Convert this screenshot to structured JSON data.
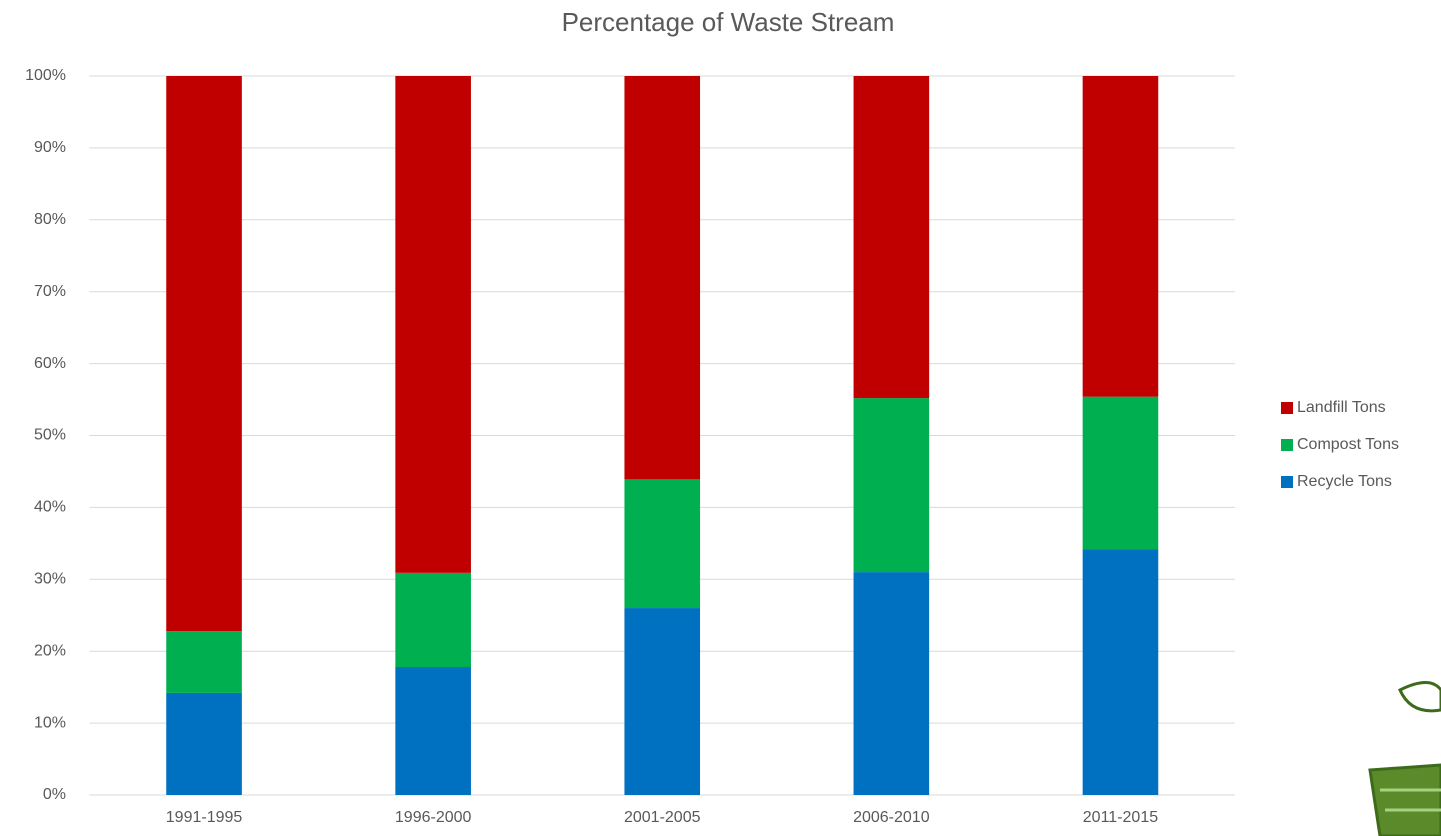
{
  "chart_data": {
    "type": "stacked_bar",
    "title": "Percentage of Waste Stream",
    "categories": [
      "1991-1995",
      "1996-2000",
      "2001-2005",
      "2006-2010",
      "2011-2015"
    ],
    "series": [
      {
        "name": "Recycle Tons",
        "color": "#0070c0",
        "values": [
          14.2,
          17.8,
          26.0,
          31.0,
          34.2
        ]
      },
      {
        "name": "Compost Tons",
        "color": "#00b050",
        "values": [
          8.6,
          13.1,
          17.9,
          24.2,
          21.2
        ]
      },
      {
        "name": "Landfill Tons",
        "color": "#c00000",
        "values": [
          77.2,
          69.1,
          56.1,
          44.8,
          44.6
        ]
      }
    ],
    "ylim": [
      0,
      100
    ],
    "yticks": [
      {
        "value": 0,
        "label": "0%"
      },
      {
        "value": 10,
        "label": "10%"
      },
      {
        "value": 20,
        "label": "20%"
      },
      {
        "value": 30,
        "label": "30%"
      },
      {
        "value": 40,
        "label": "40%"
      },
      {
        "value": 50,
        "label": "50%"
      },
      {
        "value": 60,
        "label": "60%"
      },
      {
        "value": 70,
        "label": "70%"
      },
      {
        "value": 80,
        "label": "80%"
      },
      {
        "value": 90,
        "label": "90%"
      },
      {
        "value": 100,
        "label": "100%"
      }
    ],
    "grid": true,
    "legend": "right"
  }
}
